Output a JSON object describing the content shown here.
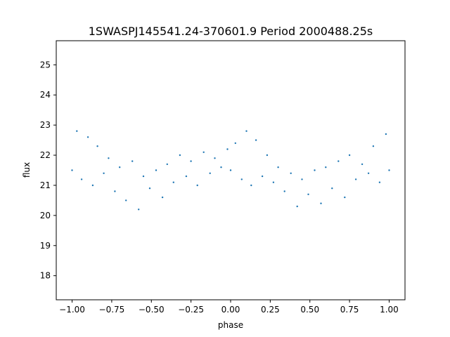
{
  "chart_data": {
    "type": "scatter",
    "title": "1SWASPJ145541.24-370601.9 Period 2000488.25s",
    "xlabel": "phase",
    "ylabel": "flux",
    "xlim": [
      -1.1,
      1.1
    ],
    "ylim": [
      17.2,
      25.8
    ],
    "xticks": [
      -1.0,
      -0.75,
      -0.5,
      -0.25,
      0.0,
      0.25,
      0.5,
      0.75,
      1.0
    ],
    "xtick_labels": [
      "−1.00",
      "−0.75",
      "−0.50",
      "−0.25",
      "0.00",
      "0.25",
      "0.50",
      "0.75",
      "1.00"
    ],
    "yticks": [
      18,
      19,
      20,
      21,
      22,
      23,
      24,
      25
    ],
    "ytick_labels": [
      "18",
      "19",
      "20",
      "21",
      "22",
      "23",
      "24",
      "25"
    ],
    "grid": false,
    "point_color": "#1f77b4",
    "series": [
      {
        "x": [
          -1.0,
          -0.97,
          -0.94,
          -0.9,
          -0.87,
          -0.84,
          -0.8,
          -0.77,
          -0.73,
          -0.7,
          -0.66,
          -0.62,
          -0.58,
          -0.55,
          -0.51,
          -0.47,
          -0.43,
          -0.4,
          -0.36,
          -0.32,
          -0.28,
          -0.25,
          -0.21,
          -0.17,
          -0.13,
          -0.1,
          -0.06,
          -0.02,
          0.0,
          0.03,
          0.07,
          0.1,
          0.13,
          0.16,
          0.2,
          0.23,
          0.27,
          0.3,
          0.34,
          0.38,
          0.42,
          0.45,
          0.49,
          0.53,
          0.57,
          0.6,
          0.64,
          0.68,
          0.72,
          0.75,
          0.79,
          0.83,
          0.87,
          0.9,
          0.94,
          0.98,
          1.0
        ],
        "y": [
          21.5,
          22.8,
          21.2,
          22.6,
          21.0,
          22.3,
          21.4,
          21.9,
          20.8,
          21.6,
          20.5,
          21.8,
          20.2,
          21.3,
          20.9,
          21.5,
          20.6,
          21.7,
          21.1,
          22.0,
          21.3,
          21.8,
          21.0,
          22.1,
          21.4,
          21.9,
          21.6,
          22.2,
          21.5,
          22.4,
          21.2,
          22.8,
          21.0,
          22.5,
          21.3,
          22.0,
          21.1,
          21.6,
          20.8,
          21.4,
          20.3,
          21.2,
          20.7,
          21.5,
          20.4,
          21.6,
          20.9,
          21.8,
          20.6,
          22.0,
          21.2,
          21.7,
          21.4,
          22.3,
          21.1,
          22.7,
          21.5
        ]
      }
    ]
  }
}
